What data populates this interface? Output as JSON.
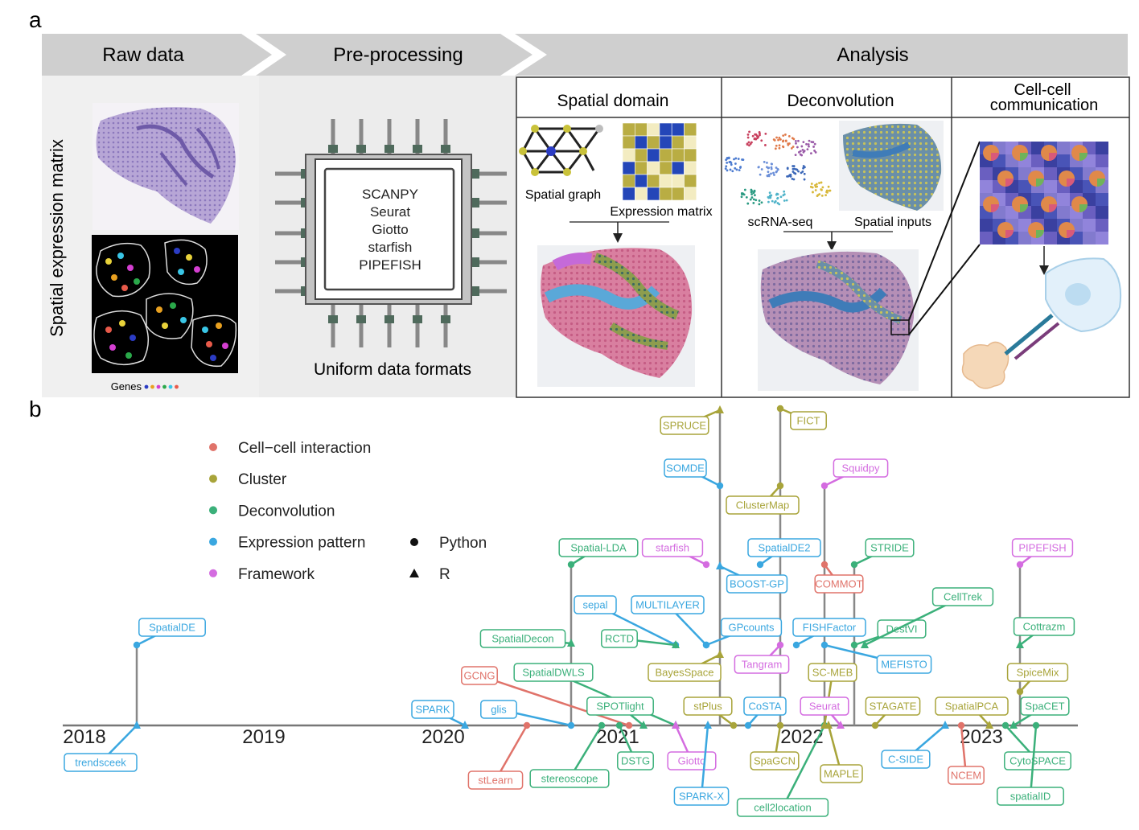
{
  "panel_a": {
    "letter": "a",
    "stages": [
      "Raw data",
      "Pre-processing",
      "Analysis"
    ],
    "side_label": "Spatial expression matrix",
    "genes_label": "Genes",
    "gene_colors": [
      "#2b3cc4",
      "#e8a020",
      "#d43fd1",
      "#2aa84a",
      "#39c6e6",
      "#e85a4a"
    ],
    "tools": [
      "SCANPY",
      "Seurat",
      "Giotto",
      "starfish",
      "PIPEFISH"
    ],
    "uniform_label": "Uniform data formats",
    "boxes": {
      "spatial_domain": "Spatial domain",
      "deconvolution": "Deconvolution",
      "ccc_line1": "Cell-cell",
      "ccc_line2": "communication"
    },
    "spatial_graph_label": "Spatial graph",
    "expression_matrix_label": "Expression matrix",
    "scrna_label": "scRNA-seq",
    "spatial_inputs_label": "Spatial inputs"
  },
  "panel_b": {
    "letter": "b",
    "legend": {
      "categories": [
        {
          "name": "Cell−cell interaction",
          "color": "#e0736a"
        },
        {
          "name": "Cluster",
          "color": "#a8a43a"
        },
        {
          "name": "Deconvolution",
          "color": "#3bb07a"
        },
        {
          "name": "Expression pattern",
          "color": "#3aa7e0"
        },
        {
          "name": "Framework",
          "color": "#d46ce0"
        }
      ],
      "shapes": [
        {
          "name": "Python",
          "shape": "circle"
        },
        {
          "name": "R",
          "shape": "triangle"
        }
      ]
    },
    "years": [
      "2018",
      "2019",
      "2020",
      "2021",
      "2022",
      "2023"
    ],
    "methods": [
      {
        "name": "trendsceek",
        "category": "Expression pattern",
        "lang": "R"
      },
      {
        "name": "SpatialDE",
        "category": "Expression pattern",
        "lang": "Python"
      },
      {
        "name": "SPARK",
        "category": "Expression pattern",
        "lang": "R"
      },
      {
        "name": "stLearn",
        "category": "Cell−cell interaction",
        "lang": "Python"
      },
      {
        "name": "GCNG",
        "category": "Cell−cell interaction",
        "lang": "Python"
      },
      {
        "name": "glis",
        "category": "Expression pattern",
        "lang": "Python"
      },
      {
        "name": "stereoscope",
        "category": "Deconvolution",
        "lang": "Python"
      },
      {
        "name": "SpatialDWLS",
        "category": "Deconvolution",
        "lang": "R"
      },
      {
        "name": "SpatialDecon",
        "category": "Deconvolution",
        "lang": "R"
      },
      {
        "name": "Spatial-LDA",
        "category": "Deconvolution",
        "lang": "Python"
      },
      {
        "name": "SPOTlight",
        "category": "Deconvolution",
        "lang": "R"
      },
      {
        "name": "DSTG",
        "category": "Deconvolution",
        "lang": "Python"
      },
      {
        "name": "sepal",
        "category": "Expression pattern",
        "lang": "Python"
      },
      {
        "name": "RCTD",
        "category": "Deconvolution",
        "lang": "R"
      },
      {
        "name": "MULTILAYER",
        "category": "Expression pattern",
        "lang": "Python"
      },
      {
        "name": "BayesSpace",
        "category": "Cluster",
        "lang": "R"
      },
      {
        "name": "Giotto",
        "category": "Framework",
        "lang": "R"
      },
      {
        "name": "starfish",
        "category": "Framework",
        "lang": "Python"
      },
      {
        "name": "stPlus",
        "category": "Cluster",
        "lang": "Python"
      },
      {
        "name": "SPARK-X",
        "category": "Expression pattern",
        "lang": "R"
      },
      {
        "name": "SOMDE",
        "category": "Expression pattern",
        "lang": "Python"
      },
      {
        "name": "SPRUCE",
        "category": "Cluster",
        "lang": "R"
      },
      {
        "name": "BOOST-GP",
        "category": "Expression pattern",
        "lang": "R"
      },
      {
        "name": "GPcounts",
        "category": "Expression pattern",
        "lang": "Python"
      },
      {
        "name": "CoSTA",
        "category": "Expression pattern",
        "lang": "Python"
      },
      {
        "name": "Tangram",
        "category": "Framework",
        "lang": "Python"
      },
      {
        "name": "SpaGCN",
        "category": "Cluster",
        "lang": "Python"
      },
      {
        "name": "cell2location",
        "category": "Deconvolution",
        "lang": "Python"
      },
      {
        "name": "ClusterMap",
        "category": "Cluster",
        "lang": "Python"
      },
      {
        "name": "FICT",
        "category": "Cluster",
        "lang": "Python"
      },
      {
        "name": "SpatialDE2",
        "category": "Expression pattern",
        "lang": "Python"
      },
      {
        "name": "FISHFactor",
        "category": "Expression pattern",
        "lang": "Python"
      },
      {
        "name": "SC-MEB",
        "category": "Cluster",
        "lang": "R"
      },
      {
        "name": "Seurat",
        "category": "Framework",
        "lang": "R"
      },
      {
        "name": "Squidpy",
        "category": "Framework",
        "lang": "Python"
      },
      {
        "name": "COMMOT",
        "category": "Cell−cell interaction",
        "lang": "Python"
      },
      {
        "name": "MAPLE",
        "category": "Cluster",
        "lang": "R"
      },
      {
        "name": "STRIDE",
        "category": "Deconvolution",
        "lang": "Python"
      },
      {
        "name": "DestVI",
        "category": "Deconvolution",
        "lang": "Python"
      },
      {
        "name": "CellTrek",
        "category": "Deconvolution",
        "lang": "R"
      },
      {
        "name": "MEFISTO",
        "category": "Expression pattern",
        "lang": "Python"
      },
      {
        "name": "STAGATE",
        "category": "Cluster",
        "lang": "Python"
      },
      {
        "name": "C-SIDE",
        "category": "Expression pattern",
        "lang": "R"
      },
      {
        "name": "SpatialPCA",
        "category": "Cluster",
        "lang": "R"
      },
      {
        "name": "NCEM",
        "category": "Cell−cell interaction",
        "lang": "Python"
      },
      {
        "name": "PIPEFISH",
        "category": "Framework",
        "lang": "Python"
      },
      {
        "name": "Cottrazm",
        "category": "Deconvolution",
        "lang": "R"
      },
      {
        "name": "SpiceMix",
        "category": "Cluster",
        "lang": "Python"
      },
      {
        "name": "SpaCET",
        "category": "Deconvolution",
        "lang": "R"
      },
      {
        "name": "CytoSPACE",
        "category": "Deconvolution",
        "lang": "Python"
      },
      {
        "name": "spatialID",
        "category": "Deconvolution",
        "lang": "Python"
      }
    ]
  }
}
